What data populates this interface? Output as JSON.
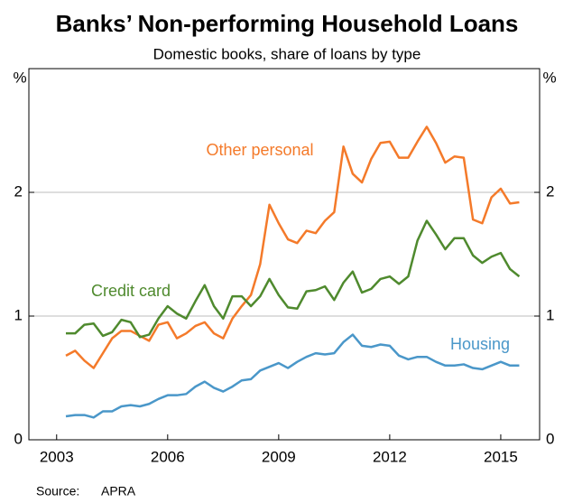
{
  "chart_data": {
    "type": "line",
    "title": "Banks’ Non-performing Household Loans",
    "subtitle": "Domestic books, share of loans by type",
    "y_unit": "%",
    "source_label": "Source:",
    "source": "APRA",
    "x": [
      2003.25,
      2003.5,
      2003.75,
      2004,
      2004.25,
      2004.5,
      2004.75,
      2005,
      2005.25,
      2005.5,
      2005.75,
      2006,
      2006.25,
      2006.5,
      2006.75,
      2007,
      2007.25,
      2007.5,
      2007.75,
      2008,
      2008.25,
      2008.5,
      2008.75,
      2009,
      2009.25,
      2009.5,
      2009.75,
      2010,
      2010.25,
      2010.5,
      2010.75,
      2011,
      2011.25,
      2011.5,
      2011.75,
      2012,
      2012.25,
      2012.5,
      2012.75,
      2013,
      2013.25,
      2013.5,
      2013.75,
      2014,
      2014.25,
      2014.5,
      2014.75,
      2015,
      2015.25,
      2015.5
    ],
    "xlim": [
      2002.25,
      2016.05
    ],
    "xticks": [
      2003,
      2006,
      2009,
      2012,
      2015
    ],
    "ylim": [
      0,
      3
    ],
    "yticks": [
      0,
      1,
      2
    ],
    "grid": true,
    "series": [
      {
        "name": "Other personal",
        "color": "#f47a2a",
        "values": [
          0.68,
          0.72,
          0.64,
          0.58,
          0.7,
          0.82,
          0.88,
          0.88,
          0.84,
          0.8,
          0.93,
          0.95,
          0.82,
          0.86,
          0.92,
          0.95,
          0.86,
          0.82,
          0.98,
          1.08,
          1.17,
          1.42,
          1.9,
          1.75,
          1.62,
          1.59,
          1.69,
          1.67,
          1.77,
          1.84,
          2.37,
          2.15,
          2.08,
          2.27,
          2.4,
          2.41,
          2.28,
          2.28,
          2.41,
          2.53,
          2.4,
          2.24,
          2.29,
          2.28,
          1.78,
          1.75,
          1.96,
          2.03,
          1.91,
          1.92
        ]
      },
      {
        "name": "Credit card",
        "color": "#4f8a2e",
        "values": [
          0.86,
          0.86,
          0.93,
          0.94,
          0.84,
          0.87,
          0.97,
          0.95,
          0.83,
          0.85,
          0.98,
          1.08,
          1.02,
          0.98,
          1.12,
          1.25,
          1.08,
          0.98,
          1.16,
          1.16,
          1.08,
          1.16,
          1.3,
          1.17,
          1.07,
          1.06,
          1.2,
          1.21,
          1.24,
          1.13,
          1.27,
          1.36,
          1.19,
          1.22,
          1.3,
          1.32,
          1.26,
          1.32,
          1.61,
          1.77,
          1.66,
          1.54,
          1.63,
          1.63,
          1.49,
          1.43,
          1.48,
          1.51,
          1.38,
          1.32
        ]
      },
      {
        "name": "Housing",
        "color": "#4a97c9",
        "values": [
          0.19,
          0.2,
          0.2,
          0.18,
          0.23,
          0.23,
          0.27,
          0.28,
          0.27,
          0.29,
          0.33,
          0.36,
          0.36,
          0.37,
          0.43,
          0.47,
          0.42,
          0.39,
          0.43,
          0.48,
          0.49,
          0.56,
          0.59,
          0.62,
          0.58,
          0.63,
          0.67,
          0.7,
          0.69,
          0.7,
          0.79,
          0.85,
          0.76,
          0.75,
          0.77,
          0.76,
          0.68,
          0.65,
          0.67,
          0.67,
          0.63,
          0.6,
          0.6,
          0.61,
          0.58,
          0.57,
          0.6,
          0.63,
          0.6,
          0.6
        ]
      }
    ]
  }
}
